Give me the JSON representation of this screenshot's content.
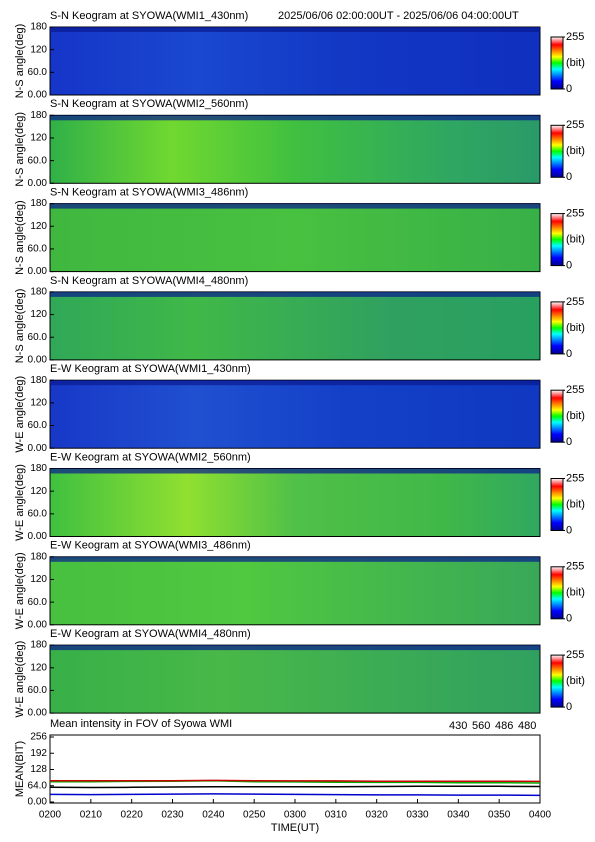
{
  "chart_data": [
    {
      "type": "keogram",
      "title": "S-N Keogram at SYOWA(WMI1_430nm)",
      "subtitle": "2025/06/06 02:00:00UT - 2025/06/06 04:00:00UT",
      "ylabel": "N-S angle(deg)",
      "ylim": [
        0,
        180
      ],
      "yticks": [
        {
          "value": 0,
          "label": "0.00"
        },
        {
          "value": 60,
          "label": "60.0"
        },
        120,
        180
      ],
      "clim": [
        0,
        255
      ],
      "cticks": [
        0,
        255
      ],
      "clabel": "(bit)"
    },
    {
      "type": "keogram",
      "title": "S-N Keogram at SYOWA(WMI2_560nm)",
      "ylabel": "N-S angle(deg)",
      "ylim": [
        0,
        180
      ],
      "yticks": [
        {
          "value": 0,
          "label": "0.00"
        },
        {
          "value": 60,
          "label": "60.0"
        },
        120,
        180
      ],
      "clim": [
        0,
        255
      ],
      "cticks": [
        0,
        255
      ],
      "clabel": "(bit)"
    },
    {
      "type": "keogram",
      "title": "S-N Keogram at SYOWA(WMI3_486nm)",
      "ylabel": "N-S angle(deg)",
      "ylim": [
        0,
        180
      ],
      "yticks": [
        {
          "value": 0,
          "label": "0.00"
        },
        {
          "value": 60,
          "label": "60.0"
        },
        120,
        180
      ],
      "clim": [
        0,
        255
      ],
      "cticks": [
        0,
        255
      ],
      "clabel": "(bit)"
    },
    {
      "type": "keogram",
      "title": "S-N Keogram at SYOWA(WMI4_480nm)",
      "ylabel": "N-S angle(deg)",
      "ylim": [
        0,
        180
      ],
      "yticks": [
        {
          "value": 0,
          "label": "0.00"
        },
        {
          "value": 60,
          "label": "60.0"
        },
        120,
        180
      ],
      "clim": [
        0,
        255
      ],
      "cticks": [
        0,
        255
      ],
      "clabel": "(bit)"
    },
    {
      "type": "keogram",
      "title": "E-W Keogram at SYOWA(WMI1_430nm)",
      "ylabel": "W-E angle(deg)",
      "ylim": [
        0,
        180
      ],
      "yticks": [
        {
          "value": 0,
          "label": "0.00"
        },
        {
          "value": 60,
          "label": "60.0"
        },
        120,
        180
      ],
      "clim": [
        0,
        255
      ],
      "cticks": [
        0,
        255
      ],
      "clabel": "(bit)"
    },
    {
      "type": "keogram",
      "title": "E-W Keogram at SYOWA(WMI2_560nm)",
      "ylabel": "W-E angle(deg)",
      "ylim": [
        0,
        180
      ],
      "yticks": [
        {
          "value": 0,
          "label": "0.00"
        },
        {
          "value": 60,
          "label": "60.0"
        },
        120,
        180
      ],
      "clim": [
        0,
        255
      ],
      "cticks": [
        0,
        255
      ],
      "clabel": "(bit)"
    },
    {
      "type": "keogram",
      "title": "E-W Keogram at SYOWA(WMI3_486nm)",
      "ylabel": "W-E angle(deg)",
      "ylim": [
        0,
        180
      ],
      "yticks": [
        {
          "value": 0,
          "label": "0.00"
        },
        {
          "value": 60,
          "label": "60.0"
        },
        120,
        180
      ],
      "clim": [
        0,
        255
      ],
      "cticks": [
        0,
        255
      ],
      "clabel": "(bit)"
    },
    {
      "type": "keogram",
      "title": "E-W Keogram at SYOWA(WMI4_480nm)",
      "ylabel": "W-E angle(deg)",
      "ylim": [
        0,
        180
      ],
      "yticks": [
        {
          "value": 0,
          "label": "0.00"
        },
        {
          "value": 60,
          "label": "60.0"
        },
        120,
        180
      ],
      "clim": [
        0,
        255
      ],
      "cticks": [
        0,
        255
      ],
      "clabel": "(bit)"
    },
    {
      "type": "line",
      "title": "Mean intensity in FOV of Syowa WMI",
      "xlabel": "TIME(UT)",
      "ylabel": "MEAN(BIT)",
      "x": [
        "0200",
        "0210",
        "0220",
        "0230",
        "0240",
        "0250",
        "0300",
        "0310",
        "0320",
        "0330",
        "0340",
        "0350",
        "0400"
      ],
      "ylim": [
        0,
        256
      ],
      "yticks": [
        {
          "value": 0,
          "label": "0.00"
        },
        {
          "value": 64,
          "label": "64.0"
        },
        128,
        192,
        256
      ],
      "series": [
        {
          "name": "430",
          "color": "#0000cc",
          "values": [
            30,
            29,
            30,
            31,
            32,
            31,
            30,
            29,
            28,
            28,
            27,
            27,
            26
          ]
        },
        {
          "name": "560",
          "color": "#00aa00",
          "values": [
            80,
            80,
            81,
            82,
            84,
            80,
            79,
            78,
            77,
            77,
            76,
            76,
            75
          ]
        },
        {
          "name": "486",
          "color": "#cc0000",
          "values": [
            84,
            84,
            84,
            84,
            85,
            84,
            83,
            83,
            82,
            82,
            82,
            82,
            81
          ]
        },
        {
          "name": "480",
          "color": "#000000",
          "values": [
            58,
            57,
            58,
            59,
            60,
            60,
            60,
            60,
            61,
            62,
            62,
            62,
            61
          ]
        }
      ]
    }
  ]
}
